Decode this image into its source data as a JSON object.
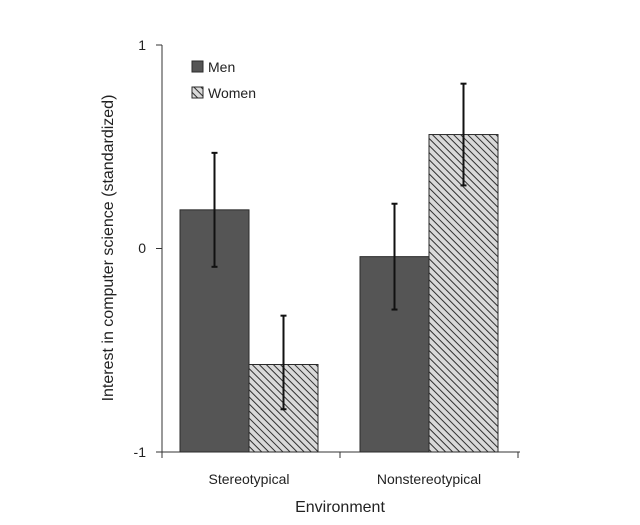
{
  "chart_data": {
    "type": "bar",
    "xlabel": "Environment",
    "ylabel": "Interest in computer science (standardized)",
    "ylim": [
      -1,
      1
    ],
    "yticks": [
      -1,
      0,
      1
    ],
    "categories": [
      "Stereotypical",
      "Nonstereotypical"
    ],
    "series": [
      {
        "name": "Men",
        "values": [
          0.19,
          -0.04
        ],
        "err_low": [
          -0.09,
          -0.3
        ],
        "err_high": [
          0.47,
          0.22
        ]
      },
      {
        "name": "Women",
        "values": [
          -0.57,
          0.56
        ],
        "err_low": [
          -0.79,
          0.31
        ],
        "err_high": [
          -0.33,
          0.81
        ]
      }
    ],
    "legend_position": "top-left"
  },
  "colors": {
    "men_fill": "#555555",
    "women_fill": "#d9d9d9",
    "women_hatch": "#303030",
    "bar_stroke": "#2a2a2a",
    "axis": "#333333"
  }
}
